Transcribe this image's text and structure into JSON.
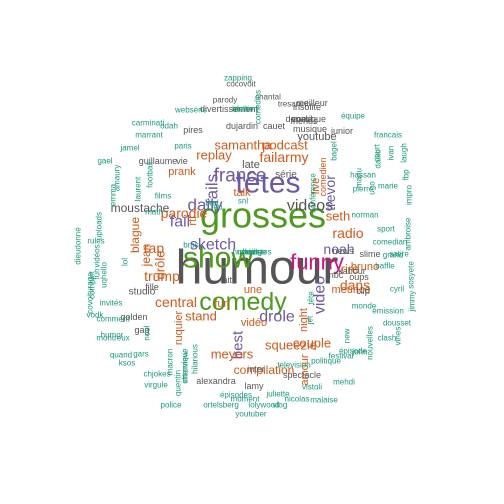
{
  "wordcloud": {
    "colors": {
      "gray": "#555555",
      "green": "#4d9a1e",
      "purple": "#6c5aa8",
      "orange": "#d05a1a",
      "magenta": "#d0147d",
      "teal": "#1b9a7a"
    },
    "words": [
      {
        "text": "humour",
        "color": "gray"
      },
      {
        "text": "grosses",
        "color": "green"
      },
      {
        "text": "têtes",
        "color": "purple"
      },
      {
        "text": "show",
        "color": "green"
      },
      {
        "text": "comedy",
        "color": "green"
      },
      {
        "text": "funny",
        "color": "magenta"
      },
      {
        "text": "france",
        "color": "purple"
      },
      {
        "text": "fails",
        "color": "purple"
      },
      {
        "text": "daily",
        "color": "purple"
      },
      {
        "text": "videos",
        "color": "gray"
      },
      {
        "text": "failarmy",
        "color": "orange"
      },
      {
        "text": "podcast",
        "color": "orange"
      },
      {
        "text": "replay",
        "color": "orange"
      },
      {
        "text": "samantha",
        "color": "orange"
      },
      {
        "text": "trevor",
        "color": "purple"
      },
      {
        "text": "noah",
        "color": "purple"
      },
      {
        "text": "video",
        "color": "purple"
      },
      {
        "text": "radio",
        "color": "orange"
      },
      {
        "text": "parodie",
        "color": "orange"
      },
      {
        "text": "fail",
        "color": "purple"
      },
      {
        "text": "sketch",
        "color": "purple"
      },
      {
        "text": "best",
        "color": "purple"
      },
      {
        "text": "drole",
        "color": "purple"
      },
      {
        "text": "stand",
        "color": "orange"
      },
      {
        "text": "squeezie",
        "color": "orange"
      },
      {
        "text": "meyers",
        "color": "orange"
      },
      {
        "text": "trump",
        "color": "orange"
      },
      {
        "text": "central",
        "color": "orange"
      },
      {
        "text": "rap",
        "color": "orange"
      },
      {
        "text": "dans",
        "color": "orange"
      },
      {
        "text": "rire",
        "color": "orange"
      },
      {
        "text": "seth",
        "color": "orange"
      },
      {
        "text": "meurice",
        "color": "orange"
      },
      {
        "text": "bruno",
        "color": "orange"
      },
      {
        "text": "prank",
        "color": "orange"
      },
      {
        "text": "moustache",
        "color": "gray"
      },
      {
        "text": "blague",
        "color": "orange"
      },
      {
        "text": "jean",
        "color": "orange"
      },
      {
        "text": "drôle",
        "color": "orange"
      },
      {
        "text": "late",
        "color": "gray"
      },
      {
        "text": "youtube",
        "color": "gray"
      },
      {
        "text": "live",
        "color": "orange"
      },
      {
        "text": "talk",
        "color": "orange"
      },
      {
        "text": "couple",
        "color": "orange"
      },
      {
        "text": "compilation",
        "color": "orange"
      },
      {
        "text": "vidéo",
        "color": "orange"
      },
      {
        "text": "amour",
        "color": "orange"
      },
      {
        "text": "night",
        "color": "orange"
      },
      {
        "text": "une",
        "color": "orange"
      },
      {
        "text": "fun",
        "color": "orange"
      },
      {
        "text": "fait",
        "color": "gray"
      },
      {
        "text": "ruquier",
        "color": "orange"
      },
      {
        "text": "studio",
        "color": "gray"
      },
      {
        "text": "golden",
        "color": "gray"
      },
      {
        "text": "gag",
        "color": "gray"
      },
      {
        "text": "fille",
        "color": "gray"
      },
      {
        "text": "série",
        "color": "gray"
      },
      {
        "text": "slime",
        "color": "gray"
      },
      {
        "text": "nbc",
        "color": "gray"
      },
      {
        "text": "oups",
        "color": "gray"
      },
      {
        "text": "clip",
        "color": "gray"
      },
      {
        "text": "news",
        "color": "gray"
      },
      {
        "text": "kabour",
        "color": "gray"
      },
      {
        "text": "spectacle",
        "color": "gray"
      },
      {
        "text": "alexandra",
        "color": "gray"
      },
      {
        "text": "lamy",
        "color": "gray"
      },
      {
        "text": "inter",
        "color": "gray"
      },
      {
        "text": "comedien",
        "color": "orange"
      },
      {
        "text": "dujardin",
        "color": "gray"
      },
      {
        "text": "cauet",
        "color": "gray"
      },
      {
        "text": "pires",
        "color": "gray"
      },
      {
        "text": "guillaume",
        "color": "gray"
      },
      {
        "text": "vie",
        "color": "gray"
      },
      {
        "text": "musique",
        "color": "gray"
      },
      {
        "text": "comique",
        "color": "gray"
      },
      {
        "text": "insolite",
        "color": "gray"
      },
      {
        "text": "divertissement",
        "color": "gray"
      },
      {
        "text": "meilleur",
        "color": "gray"
      },
      {
        "text": "friends",
        "color": "gray"
      },
      {
        "text": "donald",
        "color": "gray"
      },
      {
        "text": "junior",
        "color": "gray"
      },
      {
        "text": "parody",
        "color": "gray"
      },
      {
        "text": "cocovoit",
        "color": "gray"
      },
      {
        "text": "chantal",
        "color": "gray"
      },
      {
        "text": "tresanini",
        "color": "gray"
      },
      {
        "text": "websérie",
        "color": "teal"
      },
      {
        "text": "delire",
        "color": "teal"
      },
      {
        "text": "équipe",
        "color": "teal"
      },
      {
        "text": "carminati",
        "color": "teal"
      },
      {
        "text": "odah",
        "color": "teal"
      },
      {
        "text": "marrant",
        "color": "teal"
      },
      {
        "text": "bastien",
        "color": "teal"
      },
      {
        "text": "francais",
        "color": "teal"
      },
      {
        "text": "jamel",
        "color": "teal"
      },
      {
        "text": "paris",
        "color": "teal"
      },
      {
        "text": "amaury",
        "color": "teal"
      },
      {
        "text": "gael",
        "color": "teal"
      },
      {
        "text": "emma",
        "color": "teal"
      },
      {
        "text": "films",
        "color": "teal"
      },
      {
        "text": "football",
        "color": "teal"
      },
      {
        "text": "math",
        "color": "teal"
      },
      {
        "text": "rtl",
        "color": "orange"
      },
      {
        "text": "bros",
        "color": "teal"
      },
      {
        "text": "jeu",
        "color": "teal"
      },
      {
        "text": "snl",
        "color": "teal"
      },
      {
        "text": "bad",
        "color": "teal"
      },
      {
        "text": "pierre",
        "color": "teal"
      },
      {
        "text": "hassan",
        "color": "teal"
      },
      {
        "text": "norman",
        "color": "teal"
      },
      {
        "text": "dieudonné",
        "color": "teal"
      },
      {
        "text": "rules",
        "color": "teal"
      },
      {
        "text": "uploads",
        "color": "teal"
      },
      {
        "text": "vidéos",
        "color": "teal"
      },
      {
        "text": "covoiturage",
        "color": "teal"
      },
      {
        "text": "uqhello",
        "color": "teal"
      },
      {
        "text": "invités",
        "color": "teal"
      },
      {
        "text": "comment",
        "color": "teal"
      },
      {
        "text": "vodk",
        "color": "teal"
      },
      {
        "text": "montreux",
        "color": "teal"
      },
      {
        "text": "humor",
        "color": "teal"
      },
      {
        "text": "ksos",
        "color": "teal"
      },
      {
        "text": "quand",
        "color": "teal"
      },
      {
        "text": "chjokes",
        "color": "teal"
      },
      {
        "text": "virgule",
        "color": "teal"
      },
      {
        "text": "quentin",
        "color": "teal"
      },
      {
        "text": "interview",
        "color": "teal"
      },
      {
        "text": "hilarious",
        "color": "teal"
      },
      {
        "text": "épisodes",
        "color": "teal"
      },
      {
        "text": "moment",
        "color": "teal"
      },
      {
        "text": "nicolas",
        "color": "teal"
      },
      {
        "text": "malaise",
        "color": "teal"
      },
      {
        "text": "police",
        "color": "teal"
      },
      {
        "text": "ortelsberg",
        "color": "teal"
      },
      {
        "text": "lolywood",
        "color": "teal"
      },
      {
        "text": "vlog",
        "color": "teal"
      },
      {
        "text": "youtuber",
        "color": "teal"
      },
      {
        "text": "mehdi",
        "color": "teal"
      },
      {
        "text": "vistoli",
        "color": "teal"
      },
      {
        "text": "juliette",
        "color": "teal"
      },
      {
        "text": "politique",
        "color": "teal"
      },
      {
        "text": "festival",
        "color": "teal"
      },
      {
        "text": "épisode",
        "color": "teal"
      },
      {
        "text": "clash",
        "color": "teal"
      },
      {
        "text": "émission",
        "color": "teal"
      },
      {
        "text": "cyril",
        "color": "teal"
      },
      {
        "text": "baffle",
        "color": "teal"
      },
      {
        "text": "monde",
        "color": "teal"
      },
      {
        "text": "satire",
        "color": "teal"
      },
      {
        "text": "comedian",
        "color": "teal"
      },
      {
        "text": "sport",
        "color": "teal"
      },
      {
        "text": "marie",
        "color": "teal"
      },
      {
        "text": "grand",
        "color": "teal"
      },
      {
        "text": "dousset",
        "color": "teal"
      },
      {
        "text": "sosyete",
        "color": "teal"
      },
      {
        "text": "ambroise",
        "color": "teal"
      },
      {
        "text": "impro",
        "color": "teal"
      },
      {
        "text": "laugh",
        "color": "teal"
      },
      {
        "text": "jimmy",
        "color": "teal"
      },
      {
        "text": "vines",
        "color": "teal"
      },
      {
        "text": "nouvelles",
        "color": "teal"
      },
      {
        "text": "television",
        "color": "teal"
      },
      {
        "text": "new",
        "color": "teal"
      },
      {
        "text": "tête",
        "color": "teal"
      },
      {
        "text": "noel",
        "color": "teal"
      },
      {
        "text": "gars",
        "color": "teal"
      },
      {
        "text": "lol",
        "color": "teal"
      },
      {
        "text": "jet",
        "color": "teal"
      },
      {
        "text": "fbp",
        "color": "teal"
      },
      {
        "text": "ugo",
        "color": "teal"
      },
      {
        "text": "laurent",
        "color": "teal"
      },
      {
        "text": "fun",
        "color": "teal"
      },
      {
        "text": "complet",
        "color": "teal"
      },
      {
        "text": "macron",
        "color": "teal"
      },
      {
        "text": "chronique",
        "color": "teal"
      },
      {
        "text": "john",
        "color": "teal"
      },
      {
        "text": "ivan",
        "color": "teal"
      },
      {
        "text": "court",
        "color": "teal"
      },
      {
        "text": "manu",
        "color": "teal"
      },
      {
        "text": "bagel",
        "color": "teal"
      },
      {
        "text": "daiko",
        "color": "teal"
      },
      {
        "text": "zapping",
        "color": "teal"
      },
      {
        "text": "comedies",
        "color": "teal"
      },
      {
        "text": "conférence",
        "color": "teal"
      },
      {
        "text": "humoristes",
        "color": "teal"
      },
      {
        "text": "mariage",
        "color": "teal"
      },
      {
        "text": "hosts",
        "color": "teal"
      },
      {
        "text": "kids",
        "color": "teal"
      }
    ]
  }
}
